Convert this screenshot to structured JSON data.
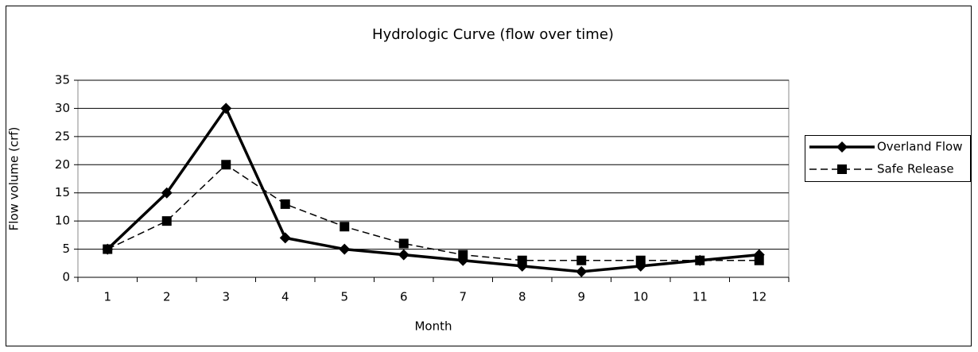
{
  "chart_data": {
    "type": "line",
    "title": "Hydrologic Curve (flow over time)",
    "x_label": "Month",
    "y_label": "Flow volume (crf)",
    "categories": [
      "1",
      "2",
      "3",
      "4",
      "5",
      "6",
      "7",
      "8",
      "9",
      "10",
      "11",
      "12"
    ],
    "series": [
      {
        "name": "Overland Flow",
        "color": "#000000",
        "line_style": "solid",
        "marker": "diamond",
        "values": [
          5,
          15,
          30,
          7,
          5,
          4,
          3,
          2,
          1,
          2,
          3,
          4
        ]
      },
      {
        "name": "Safe Release",
        "color": "#000000",
        "line_style": "dashed",
        "marker": "square",
        "values": [
          5,
          10,
          20,
          13,
          9,
          6,
          4,
          3,
          3,
          3,
          3,
          3
        ]
      }
    ],
    "ylim": [
      0,
      35
    ],
    "yticks": [
      0,
      5,
      10,
      15,
      20,
      25,
      30,
      35
    ],
    "grid": true,
    "legend": "right"
  }
}
